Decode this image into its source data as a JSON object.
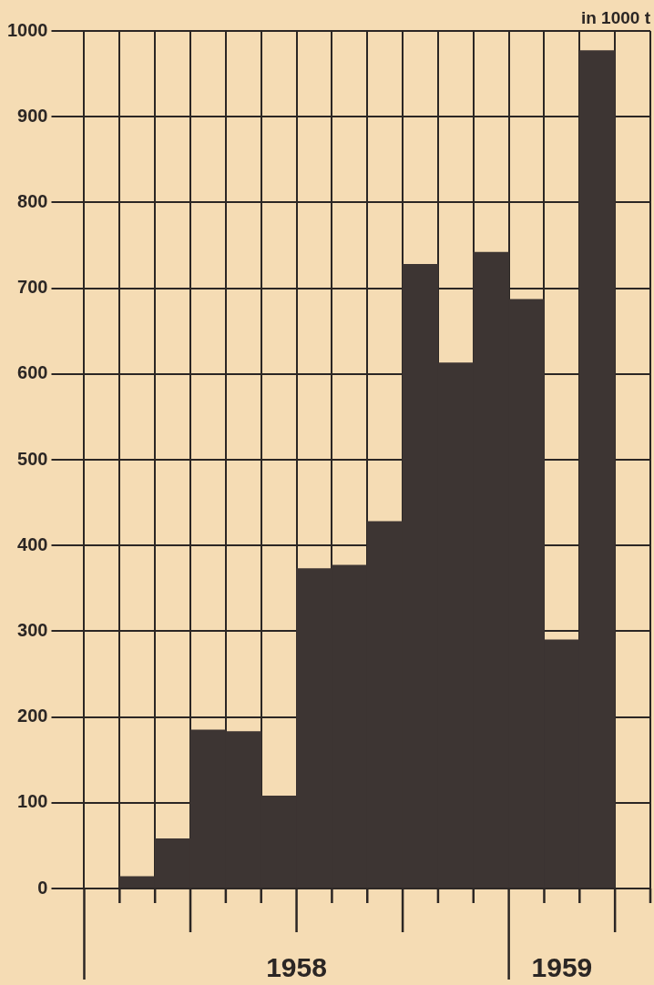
{
  "chart_data": {
    "type": "bar",
    "ylabel": "in 1000 t",
    "categories": [
      null,
      null,
      null,
      null,
      null,
      null,
      null,
      null,
      null,
      null,
      null,
      null,
      null,
      null,
      null,
      null
    ],
    "values": [
      null,
      14,
      58,
      185,
      183,
      108,
      373,
      377,
      428,
      728,
      613,
      742,
      687,
      290,
      977,
      null
    ],
    "color": "#3d3533",
    "ylim": [
      0,
      1000
    ],
    "yticks": [
      0,
      100,
      200,
      300,
      400,
      500,
      600,
      700,
      800,
      900,
      1000
    ],
    "grid": true,
    "legend": false,
    "annotations": [
      "1958",
      "1959"
    ]
  }
}
